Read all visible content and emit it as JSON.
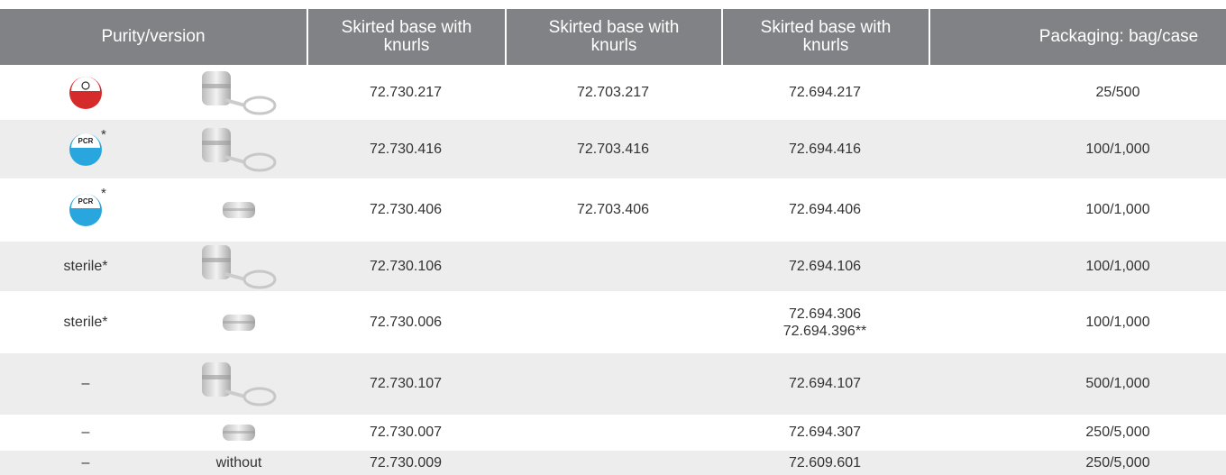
{
  "header": {
    "purity_version": "Purity/version",
    "columns": [
      "Skirted base with knurls",
      "Skirted base with knurls",
      "Skirted base with knurls"
    ],
    "packaging": "Packaging: bag/case"
  },
  "rows": [
    {
      "col1": "72.730.217",
      "col2": "72.703.217",
      "col3": "72.694.217",
      "packaging": "25/500"
    },
    {
      "badge": "PCR",
      "note": "*",
      "col1": "72.730.416",
      "col2": "72.703.416",
      "col3": "72.694.416",
      "packaging": "100/1,000"
    },
    {
      "badge": "PCR",
      "note": "*",
      "col1": "72.730.406",
      "col2": "72.703.406",
      "col3": "72.694.406",
      "packaging": "100/1,000"
    },
    {
      "purity": "sterile*",
      "col1": "72.730.106",
      "col3": "72.694.106",
      "packaging": "100/1,000"
    },
    {
      "purity": "sterile*",
      "col1": "72.730.006",
      "col3": [
        "72.694.306",
        "72.694.396**"
      ],
      "packaging": "100/1,000"
    },
    {
      "purity": "–",
      "col1": "72.730.107",
      "col3": "72.694.107",
      "packaging": "500/1,000"
    },
    {
      "purity": "–",
      "col1": "72.730.007",
      "col3": "72.694.307",
      "packaging": "250/5,000"
    },
    {
      "purity": "–",
      "version": "without",
      "col1": "72.730.009",
      "col3": "72.609.601",
      "packaging": "250/5,000"
    }
  ]
}
